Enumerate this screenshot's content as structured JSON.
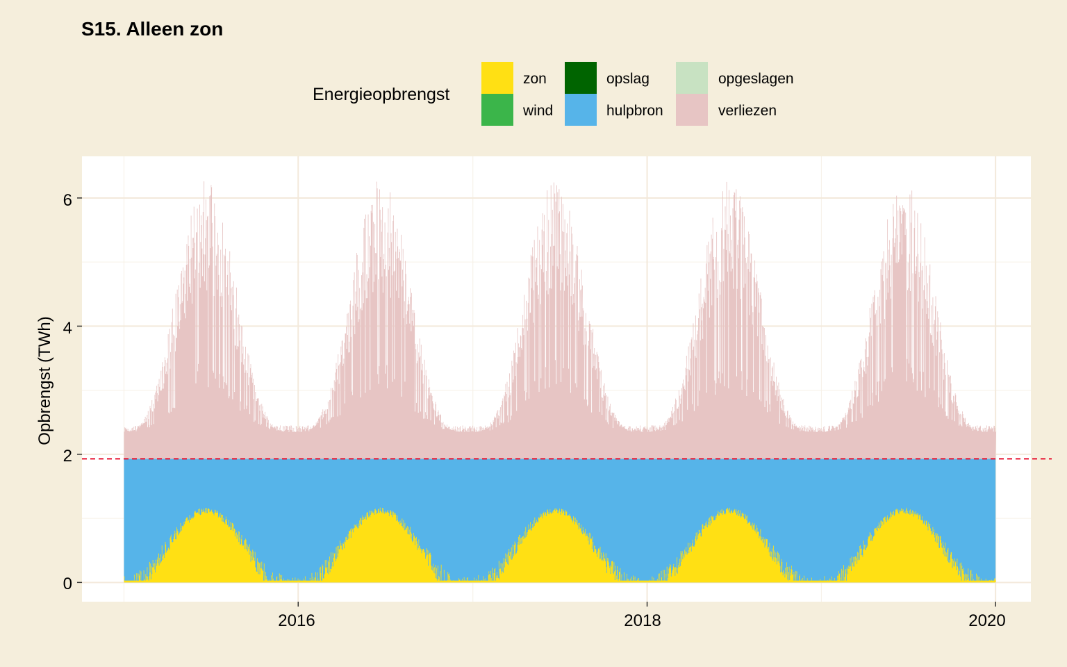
{
  "title": "S15. Alleen zon",
  "legend": {
    "title": "Energieopbrengst",
    "entries": [
      {
        "label": "zon",
        "color": "#FFE014"
      },
      {
        "label": "wind",
        "color": "#3BB54A"
      },
      {
        "label": "opslag",
        "color": "#006400"
      },
      {
        "label": "hulpbron",
        "color": "#56B4E9"
      },
      {
        "label": "opgeslagen",
        "color": "#C8E2C2"
      },
      {
        "label": "verliezen",
        "color": "#E7C5C4"
      }
    ]
  },
  "chart_data": {
    "type": "area",
    "xlabel": "",
    "ylabel": "Opbrengst (TWh)",
    "x_range": [
      "2015-01-01",
      "2020-01-01"
    ],
    "x_ticks": [
      "2016",
      "2018",
      "2020"
    ],
    "y_ticks": [
      "0",
      "2",
      "4",
      "6"
    ],
    "ylim": [
      -0.3,
      6.65
    ],
    "xlim": [
      "2014-10-05",
      "2020-03-15"
    ],
    "reference_line": {
      "y": 1.93,
      "color": "#E8102E",
      "style": "dashed"
    },
    "series": [
      {
        "name": "zon",
        "color": "#FFE014",
        "seasonal": {
          "base": 0.3,
          "peak": 1.18,
          "peak_day_of_year": 181
        }
      },
      {
        "name": "hulpbron",
        "color": "#56B4E9",
        "stack_top": 1.93
      },
      {
        "name": "verliezen",
        "color": "#E7C5C4",
        "seasonal": {
          "base": 2.4,
          "peak": 6.3,
          "peak_day_of_year": 181
        }
      }
    ],
    "grid": true,
    "legend_position": "top"
  }
}
